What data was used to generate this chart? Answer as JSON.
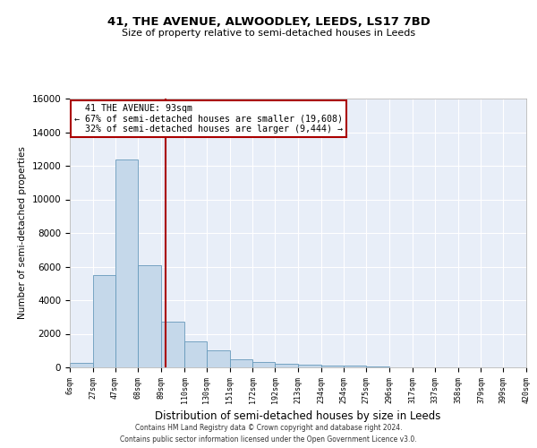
{
  "title1": "41, THE AVENUE, ALWOODLEY, LEEDS, LS17 7BD",
  "title2": "Size of property relative to semi-detached houses in Leeds",
  "xlabel": "Distribution of semi-detached houses by size in Leeds",
  "ylabel": "Number of semi-detached properties",
  "bar_edges": [
    6,
    27,
    47,
    68,
    89,
    110,
    130,
    151,
    172,
    192,
    213,
    234,
    254,
    275,
    296,
    317,
    337,
    358,
    379,
    399,
    420
  ],
  "bar_heights": [
    280,
    5500,
    12400,
    6100,
    2700,
    1550,
    1000,
    500,
    320,
    200,
    150,
    120,
    100,
    80,
    0,
    0,
    0,
    0,
    0,
    0
  ],
  "bar_color": "#c5d8ea",
  "bar_edge_color": "#6699bb",
  "property_size": 93,
  "property_label": "41 THE AVENUE: 93sqm",
  "pct_smaller": 67,
  "n_smaller": "19,608",
  "pct_larger": 32,
  "n_larger": "9,444",
  "vline_color": "#aa0000",
  "annotation_box_color": "#aa0000",
  "ylim": [
    0,
    16000
  ],
  "yticks": [
    0,
    2000,
    4000,
    6000,
    8000,
    10000,
    12000,
    14000,
    16000
  ],
  "background_color": "#e8eef8",
  "grid_color": "#ffffff",
  "footnote1": "Contains HM Land Registry data © Crown copyright and database right 2024.",
  "footnote2": "Contains public sector information licensed under the Open Government Licence v3.0."
}
